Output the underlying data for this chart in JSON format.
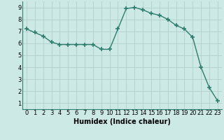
{
  "x": [
    0,
    1,
    2,
    3,
    4,
    5,
    6,
    7,
    8,
    9,
    10,
    11,
    12,
    13,
    14,
    15,
    16,
    17,
    18,
    19,
    20,
    21,
    22,
    23
  ],
  "y": [
    7.2,
    6.9,
    6.6,
    6.1,
    5.9,
    5.9,
    5.9,
    5.9,
    5.9,
    5.5,
    5.5,
    7.2,
    8.9,
    9.0,
    8.8,
    8.5,
    8.35,
    8.0,
    7.5,
    7.2,
    6.5,
    4.0,
    2.3,
    1.2
  ],
  "line_color": "#2e7d6e",
  "marker": "+",
  "marker_size": 4,
  "marker_lw": 1.2,
  "line_width": 1.0,
  "bg_color": "#cce9e5",
  "grid_color": "#b0ceca",
  "xlabel": "Humidex (Indice chaleur)",
  "xlabel_fontsize": 7,
  "tick_fontsize": 6,
  "xlim": [
    -0.5,
    23.5
  ],
  "ylim": [
    0.5,
    9.5
  ],
  "yticks": [
    1,
    2,
    3,
    4,
    5,
    6,
    7,
    8,
    9
  ],
  "xticks": [
    0,
    1,
    2,
    3,
    4,
    5,
    6,
    7,
    8,
    9,
    10,
    11,
    12,
    13,
    14,
    15,
    16,
    17,
    18,
    19,
    20,
    21,
    22,
    23
  ]
}
